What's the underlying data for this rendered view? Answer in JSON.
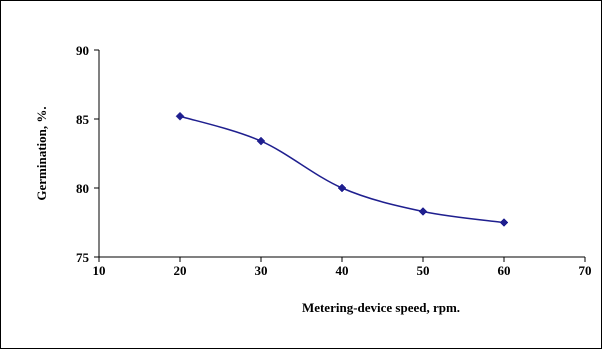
{
  "chart_data": {
    "type": "line",
    "title": "",
    "xlabel": "Metering-device speed, rpm.",
    "ylabel": "Germination, %.",
    "x": [
      20,
      30,
      40,
      50,
      60
    ],
    "series": [
      {
        "values": [
          85.2,
          83.4,
          80.0,
          78.3,
          77.5
        ]
      }
    ],
    "xlim": [
      10,
      70
    ],
    "ylim": [
      75,
      90
    ],
    "x_ticks": [
      10,
      20,
      30,
      40,
      50,
      60,
      70
    ],
    "y_ticks": [
      75,
      80,
      85,
      90
    ],
    "x_tick_labels": [
      "10",
      "20",
      "30",
      "40",
      "50",
      "60",
      "70"
    ],
    "y_tick_labels": [
      "75",
      "80",
      "85",
      "90"
    ],
    "grid": false,
    "legend": "none",
    "line_style": "smoothed",
    "marker": "diamond",
    "colors": {
      "series": "#1f1f8f",
      "axis": "#000000"
    }
  }
}
